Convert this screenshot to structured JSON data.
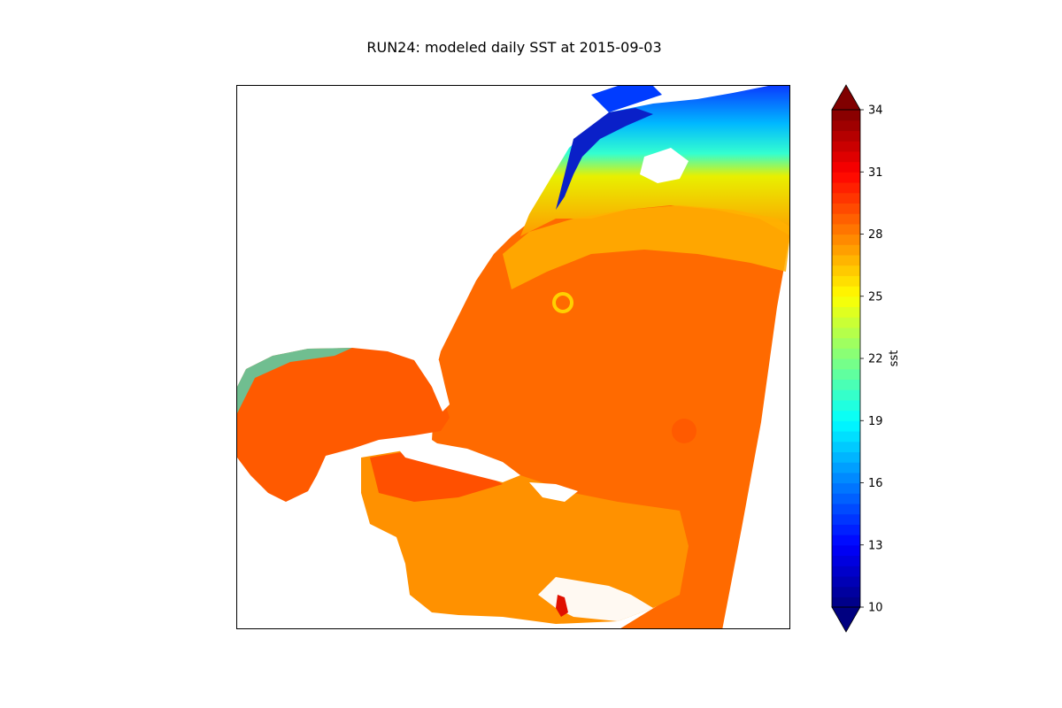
{
  "chart_data": {
    "type": "heatmap",
    "title": "RUN24: modeled daily SST at 2015-09-03",
    "variable": "sst",
    "colorbar": {
      "label": "sst",
      "vmin": 10,
      "vmax": 34,
      "ticks": [
        10,
        13,
        16,
        19,
        22,
        25,
        28,
        31,
        34
      ],
      "extend": "both",
      "colormap": "jet"
    },
    "frame": {
      "ticks": false,
      "gridlines": false
    }
  }
}
